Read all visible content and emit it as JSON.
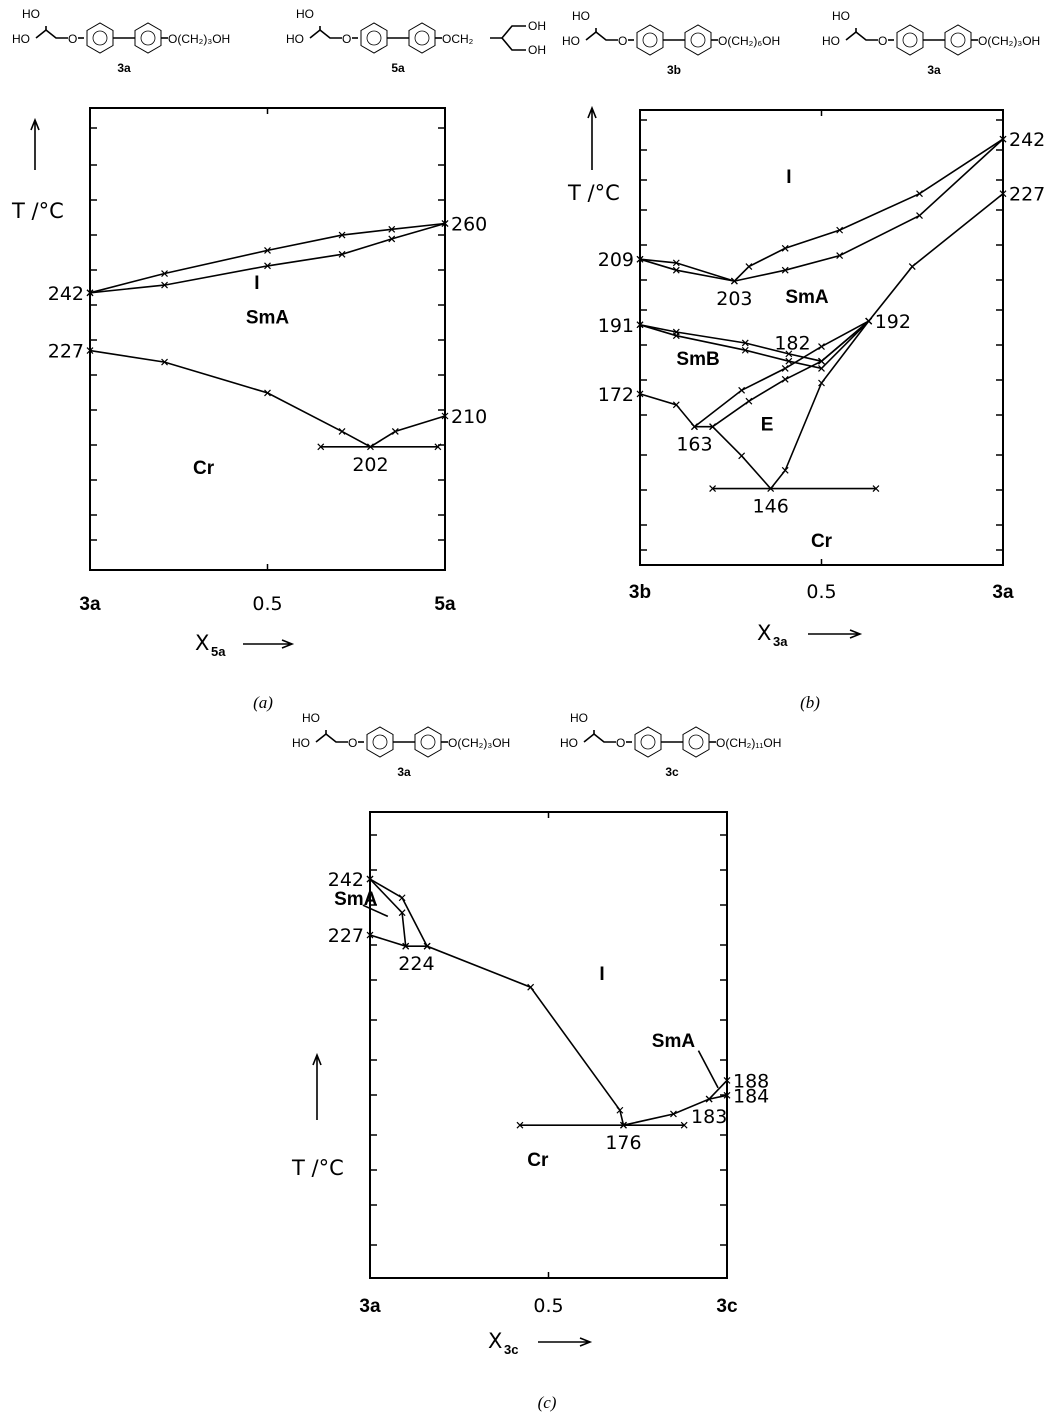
{
  "chart_data": [
    {
      "type": "line",
      "panel": "a",
      "caption": "(a)",
      "y_label": "T /°C",
      "x_label": "X",
      "x_label_sub": "5a",
      "x_tick_labels": [
        {
          "x": 0,
          "text": "3a"
        },
        {
          "x": 0.5,
          "text": "0.5"
        },
        {
          "x": 1,
          "text": "5a"
        }
      ],
      "compounds": [
        {
          "id": "3a",
          "top": "HO",
          "left": "HO",
          "tail": "O(CH₂)₃OH"
        },
        {
          "id": "5a",
          "top": "HO",
          "left": "HO",
          "tail": "OCH₂",
          "branch": [
            "OH",
            "OH"
          ]
        }
      ],
      "phase_labels": [
        {
          "text": "I",
          "x": 0.47,
          "y": 243
        },
        {
          "text": "SmA",
          "x": 0.5,
          "y": 234
        },
        {
          "text": "Cr",
          "x": 0.32,
          "y": 195
        }
      ],
      "value_labels": [
        {
          "text": "260",
          "x": 1,
          "y": 260,
          "side": "right"
        },
        {
          "text": "242",
          "x": 0,
          "y": 242,
          "side": "left"
        },
        {
          "text": "227",
          "x": 0,
          "y": 227,
          "side": "left"
        },
        {
          "text": "210",
          "x": 1,
          "y": 210,
          "side": "right"
        },
        {
          "text": "202",
          "x": 0.79,
          "y": 202,
          "side": "below"
        }
      ],
      "series": [
        {
          "values": [
            [
              0,
              242
            ],
            [
              0.21,
              247
            ],
            [
              0.5,
              253
            ],
            [
              0.71,
              257
            ],
            [
              0.85,
              258.5
            ],
            [
              1,
              260
            ]
          ]
        },
        {
          "values": [
            [
              0,
              242
            ],
            [
              0.21,
              244
            ],
            [
              0.5,
              249
            ],
            [
              0.71,
              252
            ],
            [
              0.85,
              256
            ],
            [
              1,
              260
            ]
          ]
        },
        {
          "values": [
            [
              0,
              227
            ],
            [
              0.21,
              224
            ],
            [
              0.5,
              216
            ],
            [
              0.71,
              206
            ],
            [
              0.79,
              202
            ],
            [
              0.86,
              206
            ],
            [
              1,
              210
            ]
          ]
        },
        {
          "values": [
            [
              0.65,
              202
            ],
            [
              0.98,
              202
            ]
          ]
        }
      ]
    },
    {
      "type": "line",
      "panel": "b",
      "caption": "(b)",
      "y_label": "T /°C",
      "x_label": "X",
      "x_label_sub": "3a",
      "x_tick_labels": [
        {
          "x": 0,
          "text": "3b"
        },
        {
          "x": 0.5,
          "text": "0.5"
        },
        {
          "x": 1,
          "text": "3a"
        }
      ],
      "compounds": [
        {
          "id": "3b",
          "top": "HO",
          "left": "HO",
          "tail": "O(CH₂)₆OH"
        },
        {
          "id": "3a",
          "top": "HO",
          "left": "HO",
          "tail": "O(CH₂)₃OH"
        }
      ],
      "phase_labels": [
        {
          "text": "I",
          "x": 0.41,
          "y": 230
        },
        {
          "text": "SmA",
          "x": 0.46,
          "y": 197
        },
        {
          "text": "SmB",
          "x": 0.16,
          "y": 180
        },
        {
          "text": "E",
          "x": 0.35,
          "y": 162
        },
        {
          "text": "Cr",
          "x": 0.5,
          "y": 130
        }
      ],
      "value_labels": [
        {
          "text": "242",
          "x": 1,
          "y": 242,
          "side": "right"
        },
        {
          "text": "227",
          "x": 1,
          "y": 227,
          "side": "right"
        },
        {
          "text": "209",
          "x": 0,
          "y": 209,
          "side": "left"
        },
        {
          "text": "203",
          "x": 0.26,
          "y": 203,
          "side": "below"
        },
        {
          "text": "191",
          "x": 0,
          "y": 191,
          "side": "left"
        },
        {
          "text": "182",
          "x": 0.42,
          "y": 182,
          "side": "above"
        },
        {
          "text": "192",
          "x": 0.63,
          "y": 192,
          "side": "right"
        },
        {
          "text": "172",
          "x": 0,
          "y": 172,
          "side": "left"
        },
        {
          "text": "163",
          "x": 0.15,
          "y": 163,
          "side": "below"
        },
        {
          "text": "146",
          "x": 0.36,
          "y": 146,
          "side": "below"
        }
      ],
      "series": [
        {
          "values": [
            [
              0,
              209
            ],
            [
              0.1,
              208
            ],
            [
              0.26,
              203
            ],
            [
              0.3,
              207
            ],
            [
              0.4,
              212
            ],
            [
              0.55,
              217
            ],
            [
              0.77,
              227
            ],
            [
              1,
              242
            ]
          ]
        },
        {
          "values": [
            [
              0,
              209
            ],
            [
              0.1,
              206
            ],
            [
              0.26,
              203
            ],
            [
              0.4,
              206
            ],
            [
              0.55,
              210
            ],
            [
              0.77,
              221
            ],
            [
              1,
              242
            ]
          ]
        },
        {
          "values": [
            [
              0,
              191
            ],
            [
              0.1,
              189
            ],
            [
              0.29,
              186
            ],
            [
              0.41,
              183
            ],
            [
              0.5,
              181
            ],
            [
              0.63,
              192
            ]
          ]
        },
        {
          "values": [
            [
              0,
              191
            ],
            [
              0.1,
              188
            ],
            [
              0.29,
              184
            ],
            [
              0.41,
              181
            ],
            [
              0.5,
              179
            ],
            [
              0.63,
              192
            ]
          ]
        },
        {
          "values": [
            [
              0,
              172
            ],
            [
              0.1,
              169
            ],
            [
              0.15,
              163
            ],
            [
              0.2,
              163
            ],
            [
              0.3,
              170
            ],
            [
              0.4,
              176
            ],
            [
              0.5,
              181
            ],
            [
              0.63,
              192
            ]
          ]
        },
        {
          "values": [
            [
              0.15,
              163
            ],
            [
              0.28,
              173
            ],
            [
              0.4,
              179
            ],
            [
              0.5,
              185
            ],
            [
              0.63,
              192
            ]
          ]
        },
        {
          "values": [
            [
              0.2,
              163
            ],
            [
              0.28,
              155
            ],
            [
              0.36,
              146
            ],
            [
              0.4,
              151
            ],
            [
              0.5,
              175
            ],
            [
              0.63,
              192
            ],
            [
              0.75,
              207
            ],
            [
              1,
              227
            ]
          ]
        },
        {
          "values": [
            [
              0.2,
              146
            ],
            [
              0.65,
              146
            ]
          ]
        }
      ]
    },
    {
      "type": "line",
      "panel": "c",
      "caption": "(c)",
      "y_label": "T /°C",
      "x_label": "X",
      "x_label_sub": "3c",
      "x_tick_labels": [
        {
          "x": 0,
          "text": "3a"
        },
        {
          "x": 0.5,
          "text": "0.5"
        },
        {
          "x": 1,
          "text": "3c"
        }
      ],
      "compounds": [
        {
          "id": "3a",
          "top": "HO",
          "left": "HO",
          "tail": "O(CH₂)₃OH"
        },
        {
          "id": "3c",
          "top": "HO",
          "left": "HO",
          "tail": "O(CH₂)₁₁OH"
        }
      ],
      "phase_labels": [
        {
          "text": "SmA",
          "x": -0.04,
          "y": 235,
          "side": "left"
        },
        {
          "text": "I",
          "x": 0.65,
          "y": 215
        },
        {
          "text": "SmA",
          "x": 0.85,
          "y": 197
        },
        {
          "text": "Cr",
          "x": 0.47,
          "y": 165
        }
      ],
      "value_labels": [
        {
          "text": "242",
          "x": 0,
          "y": 242,
          "side": "left"
        },
        {
          "text": "227",
          "x": 0,
          "y": 227,
          "side": "left"
        },
        {
          "text": "224",
          "x": 0.13,
          "y": 224,
          "side": "below"
        },
        {
          "text": "176",
          "x": 0.71,
          "y": 176,
          "side": "below"
        },
        {
          "text": "183",
          "x": 0.95,
          "y": 183,
          "side": "below"
        },
        {
          "text": "188",
          "x": 1,
          "y": 188,
          "side": "right"
        },
        {
          "text": "184",
          "x": 1,
          "y": 184,
          "side": "right"
        }
      ],
      "series": [
        {
          "values": [
            [
              0,
              242
            ],
            [
              0.09,
              237
            ],
            [
              0.16,
              224
            ]
          ]
        },
        {
          "values": [
            [
              0,
              242
            ],
            [
              0.09,
              233
            ],
            [
              0.1,
              224
            ]
          ]
        },
        {
          "values": [
            [
              0,
              227
            ],
            [
              0.1,
              224
            ],
            [
              0.16,
              224
            ],
            [
              0.45,
              213
            ],
            [
              0.7,
              180
            ],
            [
              0.71,
              176
            ]
          ]
        },
        {
          "values": [
            [
              0.71,
              176
            ],
            [
              0.85,
              179
            ],
            [
              0.95,
              183
            ],
            [
              1,
              188
            ]
          ]
        },
        {
          "values": [
            [
              0.95,
              183
            ],
            [
              1,
              184
            ]
          ]
        },
        {
          "values": [
            [
              0.42,
              176
            ],
            [
              0.88,
              176
            ]
          ]
        }
      ]
    }
  ]
}
